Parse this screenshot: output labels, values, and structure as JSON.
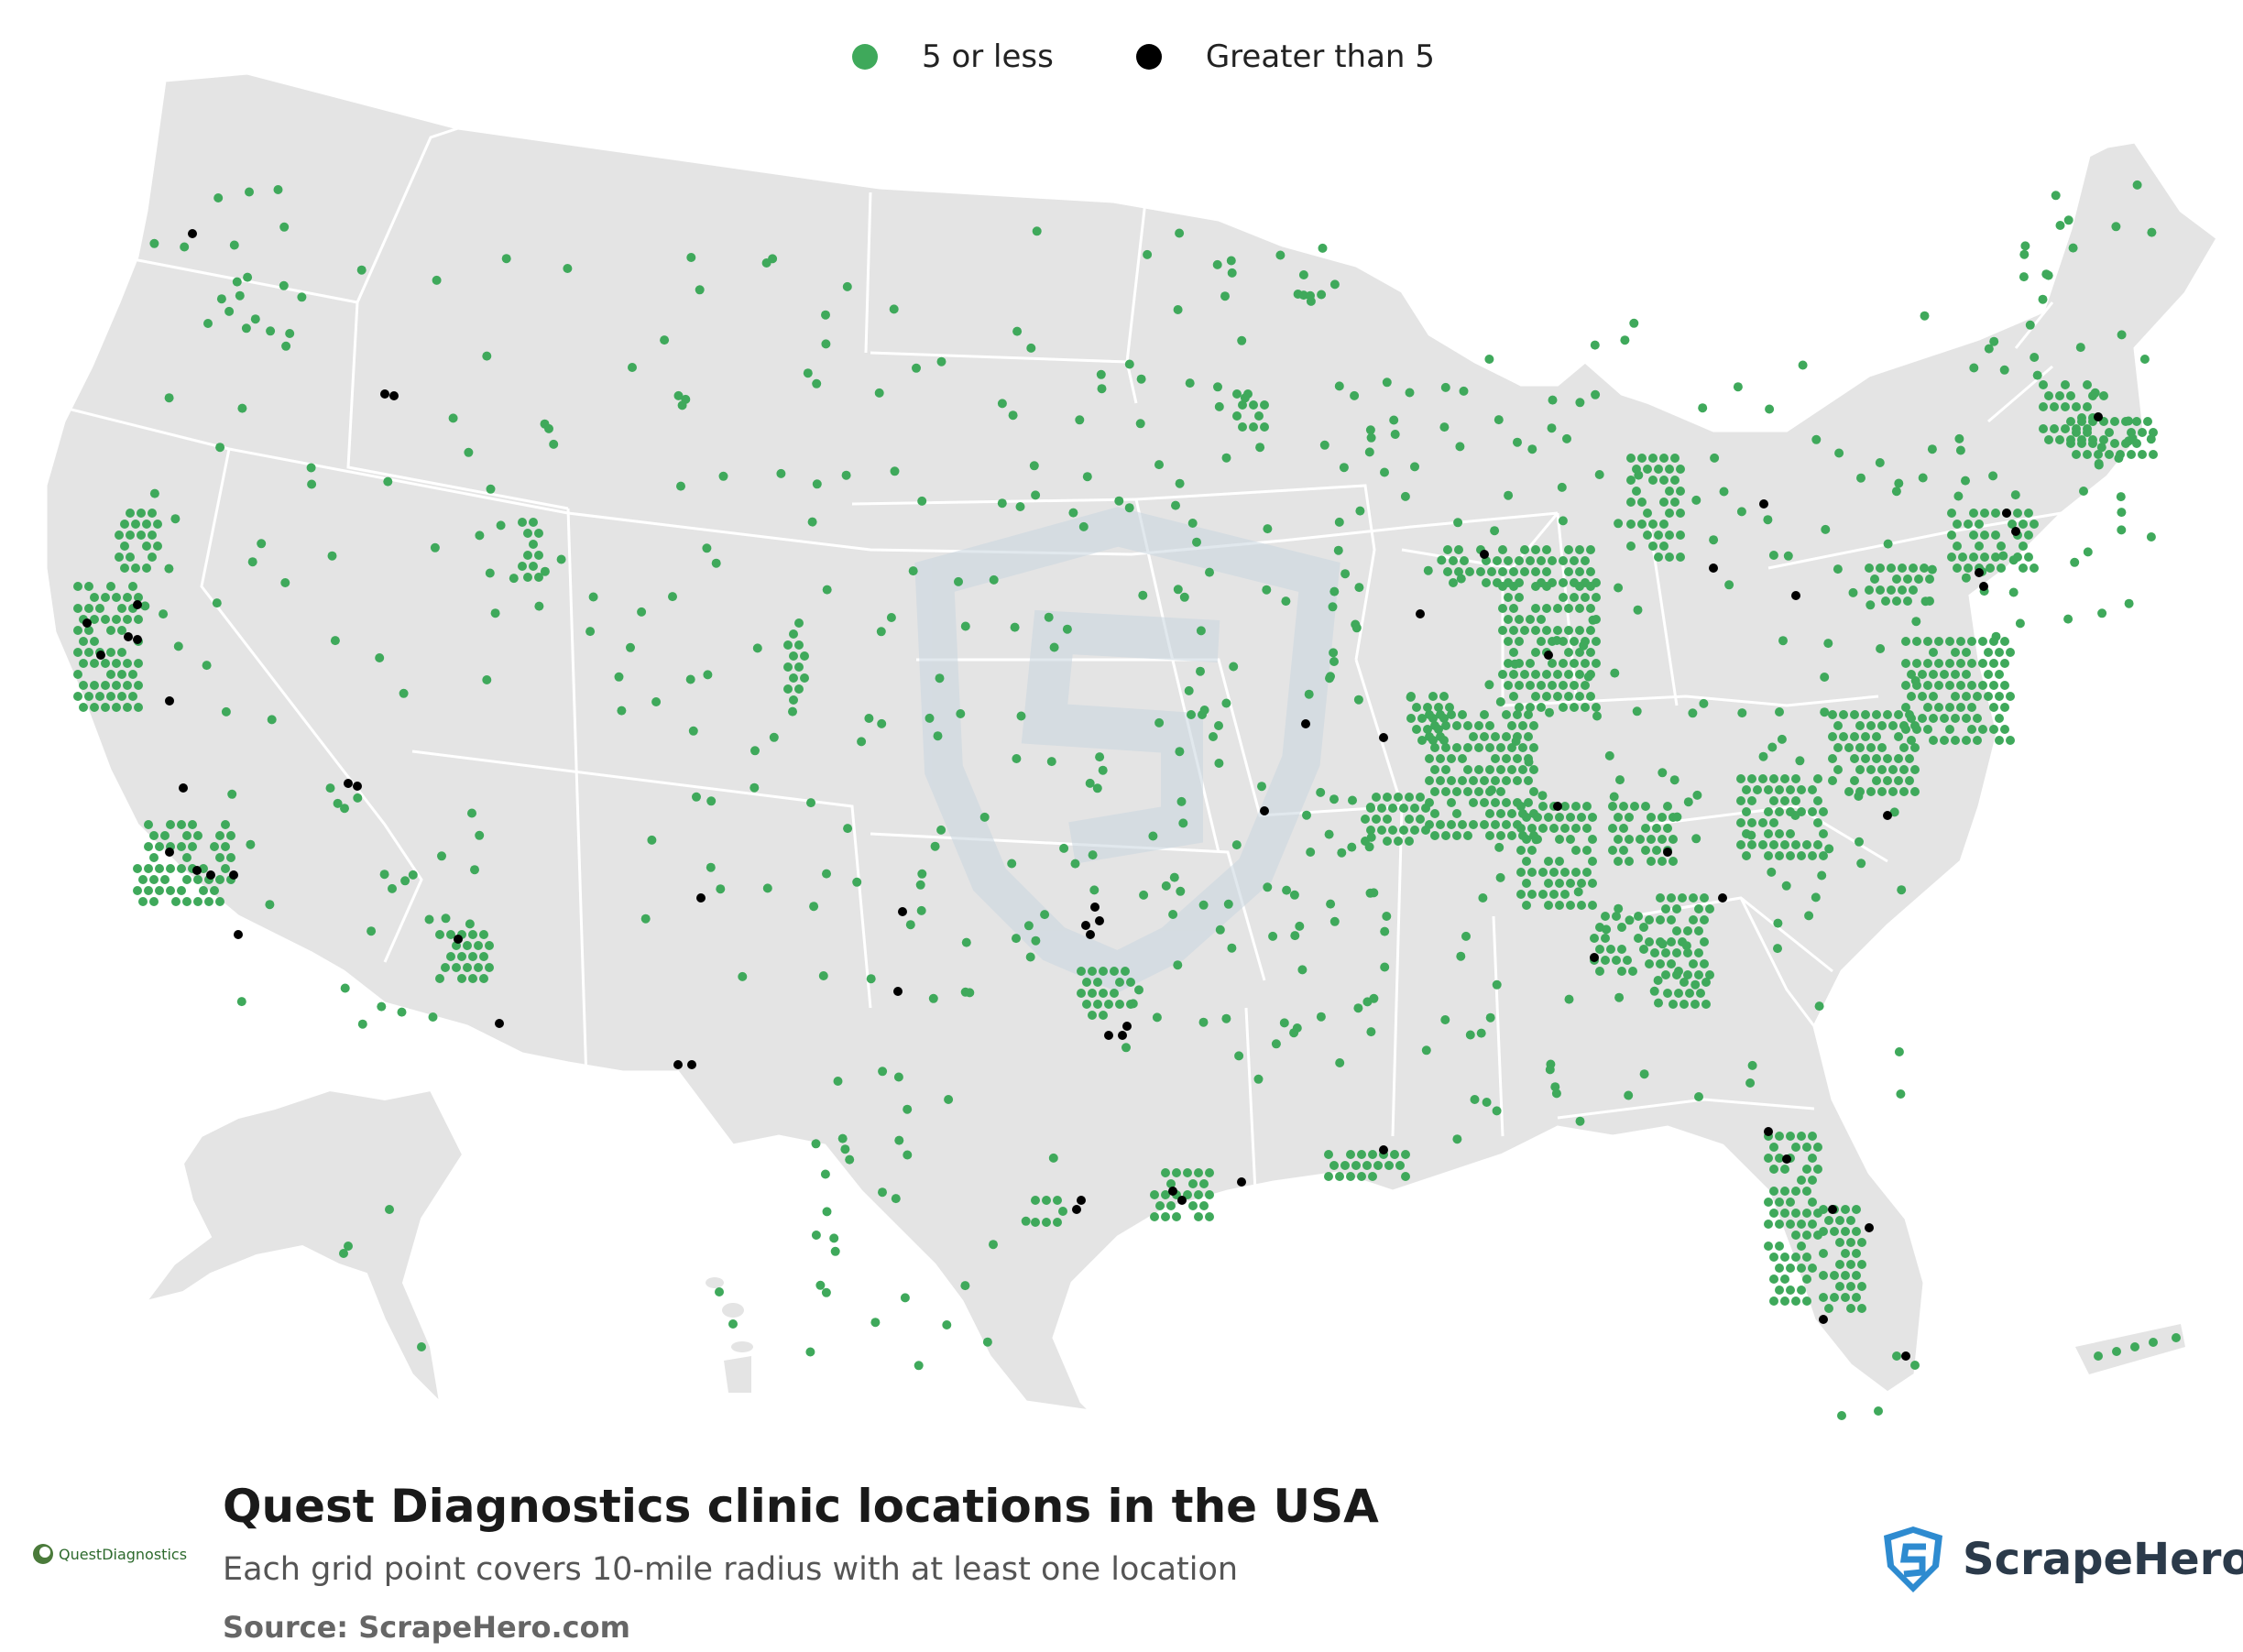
{
  "legend": {
    "items": [
      {
        "label": "5 or less",
        "color": "#3fa95b"
      },
      {
        "label": "Greater than 5",
        "color": "#000000"
      }
    ]
  },
  "title": "Quest Diagnostics clinic locations in the USA",
  "subtitle": "Each grid point covers 10-mile radius with at least one location",
  "source": "Source: ScrapeHero.com",
  "brand_logo": "QuestDiagnostics",
  "publisher_logo": "ScrapeHero",
  "colors": {
    "land": "#e4e4e4",
    "border": "#ffffff",
    "green": "#3fa95b",
    "black": "#000000",
    "watermark": "#c9d6e0"
  },
  "icons": [
    "quest-diagnostics-logo-icon",
    "scrapehero-shield-icon"
  ]
}
